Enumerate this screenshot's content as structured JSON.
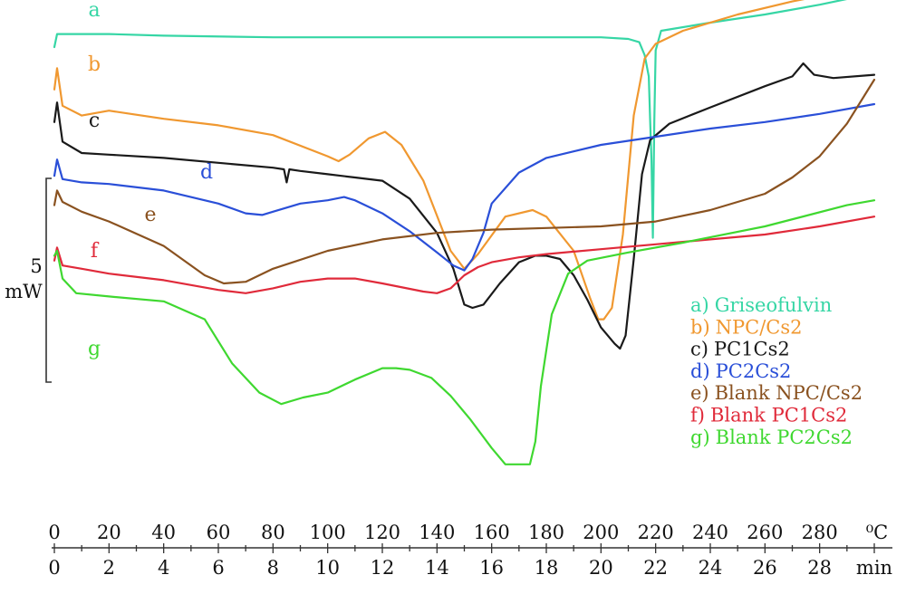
{
  "chart_data": {
    "type": "line",
    "title": "",
    "xlabel": "",
    "ylabel": "",
    "x_axis_top": {
      "unit": "⁰C",
      "range": [
        0,
        300
      ],
      "tick_labels": [
        "0",
        "20",
        "40",
        "60",
        "80",
        "100",
        "120",
        "140",
        "160",
        "180",
        "200",
        "220",
        "240",
        "260",
        "280"
      ]
    },
    "x_axis_bottom": {
      "unit": "min",
      "range": [
        0,
        30
      ],
      "tick_labels": [
        "0",
        "2",
        "4",
        "6",
        "8",
        "10",
        "12",
        "14",
        "16",
        "18",
        "20",
        "22",
        "24",
        "26",
        "28"
      ]
    },
    "scale_bar": {
      "value": "5",
      "unit": "mW"
    },
    "grid": false,
    "legend_position": "right",
    "series": [
      {
        "name": "a) Griseofulvin",
        "label": "a",
        "color": "#36d6a5",
        "x": [
          0,
          1,
          3,
          20,
          40,
          80,
          120,
          160,
          200,
          210,
          214,
          216,
          217.5,
          218,
          218.5,
          219,
          219.5,
          220,
          222,
          240,
          260,
          280,
          300
        ],
        "y": [
          21.0,
          21.8,
          21.8,
          21.8,
          21.7,
          21.6,
          21.6,
          21.6,
          21.6,
          21.5,
          21.3,
          20.5,
          19.2,
          16.5,
          14.0,
          9.3,
          16.5,
          20.8,
          22.0,
          22.5,
          23.0,
          23.6,
          24.3
        ]
      },
      {
        "name": "b) NPC/Cs2",
        "label": "b",
        "color": "#f09830",
        "x": [
          0,
          1,
          3,
          10,
          20,
          40,
          60,
          80,
          100,
          104,
          108,
          115,
          121,
          127,
          135,
          145,
          150,
          155,
          165,
          175,
          180,
          190,
          196,
          199,
          201,
          204,
          208,
          212,
          216,
          220,
          230,
          250,
          270,
          285
        ],
        "y": [
          18.4,
          19.7,
          17.4,
          16.8,
          17.1,
          16.6,
          16.2,
          15.6,
          14.3,
          14.0,
          14.4,
          15.4,
          15.8,
          15.0,
          12.8,
          8.5,
          7.4,
          8.3,
          10.6,
          11.0,
          10.6,
          8.5,
          5.6,
          4.3,
          4.3,
          5.0,
          9.5,
          16.8,
          20.3,
          21.2,
          22.0,
          23.0,
          23.8,
          24.3
        ]
      },
      {
        "name": "c) PC1Cs2",
        "label": "c",
        "color": "#1a1a1a",
        "x": [
          0,
          1,
          3,
          10,
          20,
          40,
          60,
          80,
          84,
          85,
          86,
          90,
          100,
          110,
          120,
          130,
          140,
          146,
          150,
          153,
          157,
          163,
          170,
          176,
          180,
          185,
          190,
          195,
          200,
          205,
          207,
          209,
          212,
          215,
          218,
          225,
          240,
          260,
          270,
          274,
          278,
          285,
          300
        ],
        "y": [
          16.4,
          17.6,
          15.2,
          14.5,
          14.4,
          14.2,
          13.9,
          13.6,
          13.5,
          12.7,
          13.5,
          13.4,
          13.2,
          13.0,
          12.8,
          11.7,
          9.6,
          7.4,
          5.2,
          5.0,
          5.2,
          6.5,
          7.8,
          8.2,
          8.2,
          8.0,
          7.0,
          5.5,
          3.8,
          2.8,
          2.5,
          3.3,
          8.0,
          13.2,
          15.3,
          16.3,
          17.3,
          18.6,
          19.2,
          20.0,
          19.3,
          19.1,
          19.3
        ]
      },
      {
        "name": "d) PC2Cs2",
        "label": "d",
        "color": "#2a4fd8",
        "x": [
          0,
          1,
          3,
          10,
          20,
          40,
          60,
          70,
          76,
          80,
          90,
          100,
          106,
          108,
          110,
          120,
          130,
          140,
          146,
          150,
          153,
          157,
          160,
          170,
          180,
          200,
          220,
          240,
          260,
          280,
          300
        ],
        "y": [
          13.1,
          14.1,
          12.9,
          12.7,
          12.6,
          12.2,
          11.4,
          10.8,
          10.7,
          10.9,
          11.4,
          11.6,
          11.8,
          11.7,
          11.6,
          10.8,
          9.7,
          8.4,
          7.6,
          7.3,
          8.0,
          9.6,
          11.4,
          13.3,
          14.2,
          15.0,
          15.5,
          16.0,
          16.4,
          16.9,
          17.5
        ]
      },
      {
        "name": "e) Blank NPC/Cs2",
        "label": "e",
        "color": "#8a5220",
        "x": [
          0,
          1,
          3,
          10,
          20,
          40,
          55,
          62,
          70,
          80,
          100,
          120,
          140,
          160,
          180,
          200,
          220,
          240,
          260,
          270,
          280,
          290,
          300
        ],
        "y": [
          11.3,
          12.2,
          11.5,
          10.9,
          10.3,
          8.8,
          7.0,
          6.5,
          6.6,
          7.4,
          8.5,
          9.2,
          9.6,
          9.8,
          9.9,
          10.0,
          10.3,
          11.0,
          12.0,
          13.0,
          14.3,
          16.3,
          19.0
        ]
      },
      {
        "name": "f) Blank PC1Cs2",
        "label": "f",
        "color": "#e02a3a",
        "x": [
          0,
          1,
          3,
          10,
          20,
          40,
          60,
          70,
          80,
          90,
          100,
          110,
          120,
          135,
          140,
          145,
          150,
          155,
          160,
          170,
          180,
          200,
          220,
          240,
          260,
          280,
          300
        ],
        "y": [
          7.9,
          8.7,
          7.6,
          7.4,
          7.1,
          6.7,
          6.1,
          5.9,
          6.2,
          6.6,
          6.8,
          6.8,
          6.5,
          6.0,
          5.9,
          6.2,
          7.0,
          7.5,
          7.8,
          8.1,
          8.3,
          8.6,
          8.9,
          9.2,
          9.5,
          10.0,
          10.6
        ]
      },
      {
        "name": "g) Blank PC2Cs2",
        "label": "g",
        "color": "#3fd830",
        "x": [
          0,
          1,
          3,
          8,
          20,
          40,
          55,
          65,
          75,
          83,
          91,
          100,
          110,
          120,
          125,
          130,
          138,
          145,
          152,
          160,
          165,
          170,
          174,
          176,
          178,
          182,
          188,
          195,
          210,
          230,
          260,
          290,
          300
        ],
        "y": [
          8.2,
          8.5,
          6.8,
          5.9,
          5.7,
          5.4,
          4.3,
          1.6,
          -0.2,
          -0.9,
          -0.5,
          -0.2,
          0.6,
          1.3,
          1.3,
          1.2,
          0.7,
          -0.4,
          -1.8,
          -3.6,
          -4.6,
          -4.6,
          -4.6,
          -3.2,
          0.2,
          4.6,
          7.1,
          7.9,
          8.4,
          9.0,
          10.0,
          11.3,
          11.6
        ]
      }
    ],
    "series_labels": [
      "a",
      "b",
      "c",
      "d",
      "e",
      "f",
      "g"
    ],
    "legend": [
      {
        "prefix": "a)",
        "text": "Griseofulvin",
        "color": "#36d6a5"
      },
      {
        "prefix": "b)",
        "text": "NPC/Cs2",
        "color": "#f09830"
      },
      {
        "prefix": "c)",
        "text": "PC1Cs2",
        "color": "#1a1a1a"
      },
      {
        "prefix": "d)",
        "text": "PC2Cs2",
        "color": "#2a4fd8"
      },
      {
        "prefix": "e)",
        "text": "Blank NPC/Cs2",
        "color": "#8a5220"
      },
      {
        "prefix": "f)",
        "text": "Blank PC1Cs2",
        "color": "#e02a3a"
      },
      {
        "prefix": "g)",
        "text": "Blank PC2Cs2",
        "color": "#3fd830"
      }
    ]
  }
}
